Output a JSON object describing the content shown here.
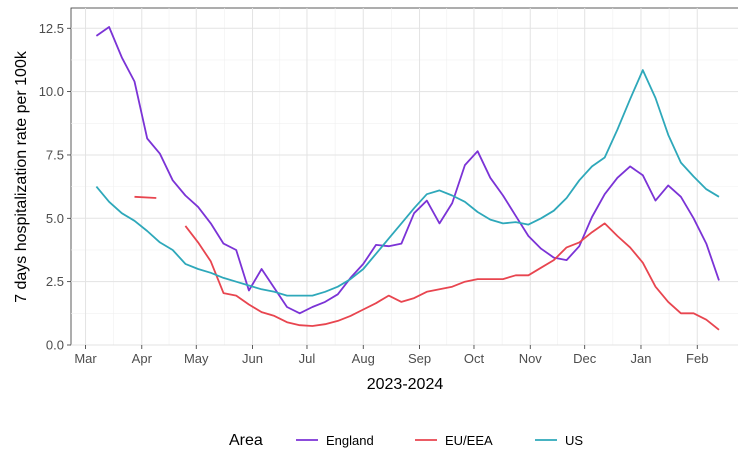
{
  "chart_data": {
    "type": "line",
    "title": "",
    "xlabel": "2023-2024",
    "ylabel": "7 days hospitalization rate per 100k",
    "x_tick_labels": [
      "Mar",
      "Apr",
      "May",
      "Jun",
      "Jul",
      "Aug",
      "Sep",
      "Oct",
      "Nov",
      "Dec",
      "Jan",
      "Feb"
    ],
    "x_tick_dates": [
      "2023-03-01",
      "2023-04-01",
      "2023-05-01",
      "2023-06-01",
      "2023-07-01",
      "2023-08-01",
      "2023-09-01",
      "2023-10-01",
      "2023-11-01",
      "2023-12-01",
      "2024-01-01",
      "2024-02-01"
    ],
    "xlim": [
      "2023-02-21",
      "2024-02-24"
    ],
    "y_tick_labels": [
      "0.0",
      "2.5",
      "5.0",
      "7.5",
      "10.0",
      "12.5"
    ],
    "y_ticks": [
      0,
      2.5,
      5,
      7.5,
      10,
      12.5
    ],
    "ylim": [
      0,
      13.3
    ],
    "grid": true,
    "legend_position": "bottom",
    "legend_title": "Area",
    "series": [
      {
        "name": "England",
        "color": "#7B33D6",
        "points": [
          [
            "2023-03-07",
            12.2
          ],
          [
            "2023-03-14",
            12.55
          ],
          [
            "2023-03-21",
            11.35
          ],
          [
            "2023-03-28",
            10.4
          ],
          [
            "2023-04-04",
            8.15
          ],
          [
            "2023-04-11",
            7.55
          ],
          [
            "2023-04-18",
            6.5
          ],
          [
            "2023-04-25",
            5.9
          ],
          [
            "2023-05-02",
            5.45
          ],
          [
            "2023-05-09",
            4.8
          ],
          [
            "2023-05-16",
            4.0
          ],
          [
            "2023-05-23",
            3.75
          ],
          [
            "2023-05-30",
            2.15
          ],
          [
            "2023-06-06",
            3.0
          ],
          [
            "2023-06-13",
            2.25
          ],
          [
            "2023-06-20",
            1.5
          ],
          [
            "2023-06-27",
            1.25
          ],
          [
            "2023-07-04",
            1.5
          ],
          [
            "2023-07-11",
            1.7
          ],
          [
            "2023-07-18",
            2.0
          ],
          [
            "2023-07-25",
            2.65
          ],
          [
            "2023-08-01",
            3.2
          ],
          [
            "2023-08-08",
            3.95
          ],
          [
            "2023-08-15",
            3.9
          ],
          [
            "2023-08-22",
            4.0
          ],
          [
            "2023-08-29",
            5.2
          ],
          [
            "2023-09-05",
            5.7
          ],
          [
            "2023-09-12",
            4.8
          ],
          [
            "2023-09-19",
            5.6
          ],
          [
            "2023-09-26",
            7.1
          ],
          [
            "2023-10-03",
            7.65
          ],
          [
            "2023-10-10",
            6.6
          ],
          [
            "2023-10-17",
            5.9
          ],
          [
            "2023-10-24",
            5.1
          ],
          [
            "2023-10-31",
            4.3
          ],
          [
            "2023-11-07",
            3.8
          ],
          [
            "2023-11-14",
            3.45
          ],
          [
            "2023-11-21",
            3.35
          ],
          [
            "2023-11-28",
            3.9
          ],
          [
            "2023-12-05",
            5.05
          ],
          [
            "2023-12-12",
            5.95
          ],
          [
            "2023-12-19",
            6.6
          ],
          [
            "2023-12-26",
            7.05
          ],
          [
            "2024-01-02",
            6.7
          ],
          [
            "2024-01-09",
            5.7
          ],
          [
            "2024-01-16",
            6.3
          ],
          [
            "2024-01-23",
            5.85
          ],
          [
            "2024-01-30",
            5.0
          ],
          [
            "2024-02-06",
            4.0
          ],
          [
            "2024-02-13",
            2.55
          ]
        ]
      },
      {
        "name": "EU/EEA",
        "color": "#E8454F",
        "segments": [
          [
            [
              "2023-03-28",
              5.85
            ],
            [
              "2023-04-09",
              5.8
            ]
          ],
          [
            [
              "2023-04-25",
              4.7
            ],
            [
              "2023-05-02",
              4.05
            ],
            [
              "2023-05-09",
              3.3
            ],
            [
              "2023-05-16",
              2.05
            ],
            [
              "2023-05-23",
              1.95
            ],
            [
              "2023-05-30",
              1.6
            ],
            [
              "2023-06-06",
              1.3
            ],
            [
              "2023-06-13",
              1.15
            ],
            [
              "2023-06-20",
              0.9
            ],
            [
              "2023-06-27",
              0.78
            ],
            [
              "2023-07-04",
              0.75
            ],
            [
              "2023-07-11",
              0.82
            ],
            [
              "2023-07-18",
              0.95
            ],
            [
              "2023-07-25",
              1.15
            ],
            [
              "2023-08-01",
              1.4
            ],
            [
              "2023-08-08",
              1.65
            ],
            [
              "2023-08-15",
              1.95
            ],
            [
              "2023-08-22",
              1.7
            ],
            [
              "2023-08-29",
              1.85
            ],
            [
              "2023-09-05",
              2.1
            ],
            [
              "2023-09-12",
              2.2
            ],
            [
              "2023-09-19",
              2.3
            ],
            [
              "2023-09-26",
              2.5
            ],
            [
              "2023-10-03",
              2.6
            ],
            [
              "2023-10-10",
              2.6
            ],
            [
              "2023-10-17",
              2.6
            ],
            [
              "2023-10-24",
              2.75
            ],
            [
              "2023-10-31",
              2.75
            ],
            [
              "2023-11-07",
              3.05
            ],
            [
              "2023-11-14",
              3.35
            ],
            [
              "2023-11-21",
              3.85
            ],
            [
              "2023-11-28",
              4.05
            ],
            [
              "2023-12-05",
              4.45
            ],
            [
              "2023-12-12",
              4.8
            ],
            [
              "2023-12-19",
              4.3
            ],
            [
              "2023-12-26",
              3.85
            ],
            [
              "2024-01-02",
              3.25
            ],
            [
              "2024-01-09",
              2.3
            ],
            [
              "2024-01-16",
              1.7
            ],
            [
              "2024-01-23",
              1.25
            ],
            [
              "2024-01-30",
              1.25
            ],
            [
              "2024-02-06",
              1.0
            ],
            [
              "2024-02-13",
              0.6
            ]
          ]
        ]
      },
      {
        "name": "US",
        "color": "#2EA8BA",
        "points": [
          [
            "2023-03-07",
            6.25
          ],
          [
            "2023-03-14",
            5.65
          ],
          [
            "2023-03-21",
            5.2
          ],
          [
            "2023-03-28",
            4.9
          ],
          [
            "2023-04-04",
            4.5
          ],
          [
            "2023-04-11",
            4.05
          ],
          [
            "2023-04-18",
            3.75
          ],
          [
            "2023-04-25",
            3.2
          ],
          [
            "2023-05-02",
            3.0
          ],
          [
            "2023-05-09",
            2.85
          ],
          [
            "2023-05-16",
            2.65
          ],
          [
            "2023-05-23",
            2.5
          ],
          [
            "2023-05-30",
            2.35
          ],
          [
            "2023-06-06",
            2.2
          ],
          [
            "2023-06-13",
            2.1
          ],
          [
            "2023-06-20",
            1.95
          ],
          [
            "2023-06-27",
            1.95
          ],
          [
            "2023-07-04",
            1.95
          ],
          [
            "2023-07-11",
            2.1
          ],
          [
            "2023-07-18",
            2.3
          ],
          [
            "2023-07-25",
            2.6
          ],
          [
            "2023-08-01",
            3.0
          ],
          [
            "2023-08-08",
            3.6
          ],
          [
            "2023-08-15",
            4.2
          ],
          [
            "2023-08-22",
            4.8
          ],
          [
            "2023-08-29",
            5.4
          ],
          [
            "2023-09-05",
            5.95
          ],
          [
            "2023-09-12",
            6.1
          ],
          [
            "2023-09-19",
            5.9
          ],
          [
            "2023-09-26",
            5.65
          ],
          [
            "2023-10-03",
            5.25
          ],
          [
            "2023-10-10",
            4.95
          ],
          [
            "2023-10-17",
            4.8
          ],
          [
            "2023-10-24",
            4.85
          ],
          [
            "2023-10-31",
            4.75
          ],
          [
            "2023-11-07",
            5.0
          ],
          [
            "2023-11-14",
            5.3
          ],
          [
            "2023-11-21",
            5.8
          ],
          [
            "2023-11-28",
            6.5
          ],
          [
            "2023-12-05",
            7.05
          ],
          [
            "2023-12-12",
            7.4
          ],
          [
            "2023-12-19",
            8.5
          ],
          [
            "2023-12-26",
            9.7
          ],
          [
            "2024-01-02",
            10.85
          ],
          [
            "2024-01-09",
            9.75
          ],
          [
            "2024-01-16",
            8.3
          ],
          [
            "2024-01-23",
            7.2
          ],
          [
            "2024-01-30",
            6.65
          ],
          [
            "2024-02-06",
            6.15
          ],
          [
            "2024-02-13",
            5.85
          ]
        ]
      }
    ]
  }
}
